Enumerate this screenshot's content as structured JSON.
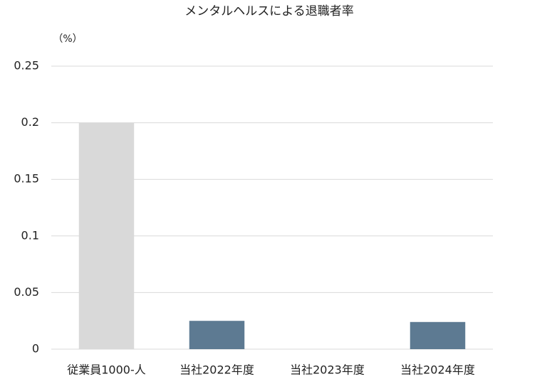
{
  "chart_data": {
    "type": "bar",
    "title": "メンタルヘルスによる退職者率",
    "y_unit_label": "（%）",
    "categories": [
      "従業員1000-人",
      "当社2022年度",
      "当社2023年度",
      "当社2024年度"
    ],
    "values": [
      0.2,
      0.025,
      0,
      0.024
    ],
    "colors": [
      "#d9d9d9",
      "#5d7a92",
      "#5d7a92",
      "#5d7a92"
    ],
    "ylim": [
      0,
      0.25
    ],
    "yticks": [
      0,
      0.05,
      0.1,
      0.15,
      0.2,
      0.25
    ],
    "grid": true
  }
}
